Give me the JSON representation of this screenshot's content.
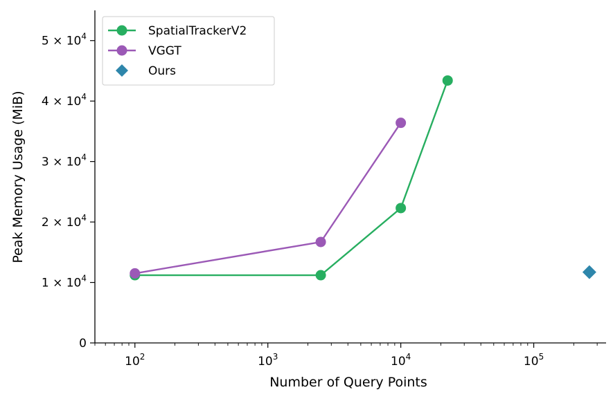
{
  "chart_data": {
    "type": "line",
    "title": "",
    "xlabel": "Number of Query Points",
    "ylabel": "Peak Memory Usage (MiB)",
    "xscale": "log",
    "xlim": [
      50,
      350000
    ],
    "ylim": [
      0,
      55000
    ],
    "x_ticks": [
      {
        "value": 100,
        "base": "10",
        "exp": "2"
      },
      {
        "value": 1000,
        "base": "10",
        "exp": "3"
      },
      {
        "value": 10000,
        "base": "10",
        "exp": "4"
      },
      {
        "value": 100000,
        "base": "10",
        "exp": "5"
      }
    ],
    "y_ticks": [
      {
        "value": 0,
        "label": "0",
        "exp": ""
      },
      {
        "value": 10000,
        "label": "1 × 10",
        "exp": "4"
      },
      {
        "value": 20000,
        "label": "2 × 10",
        "exp": "4"
      },
      {
        "value": 30000,
        "label": "3 × 10",
        "exp": "4"
      },
      {
        "value": 40000,
        "label": "4 × 10",
        "exp": "4"
      },
      {
        "value": 50000,
        "label": "5 × 10",
        "exp": "4"
      }
    ],
    "grid": false,
    "legend": "top-left",
    "series": [
      {
        "name": "SpatialTrackerV2",
        "color": "#27ae60",
        "marker": "circle",
        "line": true,
        "points": [
          [
            100,
            11200
          ],
          [
            2500,
            11200
          ],
          [
            10000,
            22300
          ],
          [
            22500,
            43400
          ]
        ]
      },
      {
        "name": "VGGT",
        "color": "#9b59b6",
        "marker": "circle",
        "line": true,
        "points": [
          [
            100,
            11500
          ],
          [
            2500,
            16700
          ],
          [
            10000,
            36400
          ]
        ]
      },
      {
        "name": "Ours",
        "color": "#2e86ab",
        "marker": "diamond",
        "line": false,
        "points": [
          [
            262144,
            11700
          ]
        ]
      }
    ]
  }
}
